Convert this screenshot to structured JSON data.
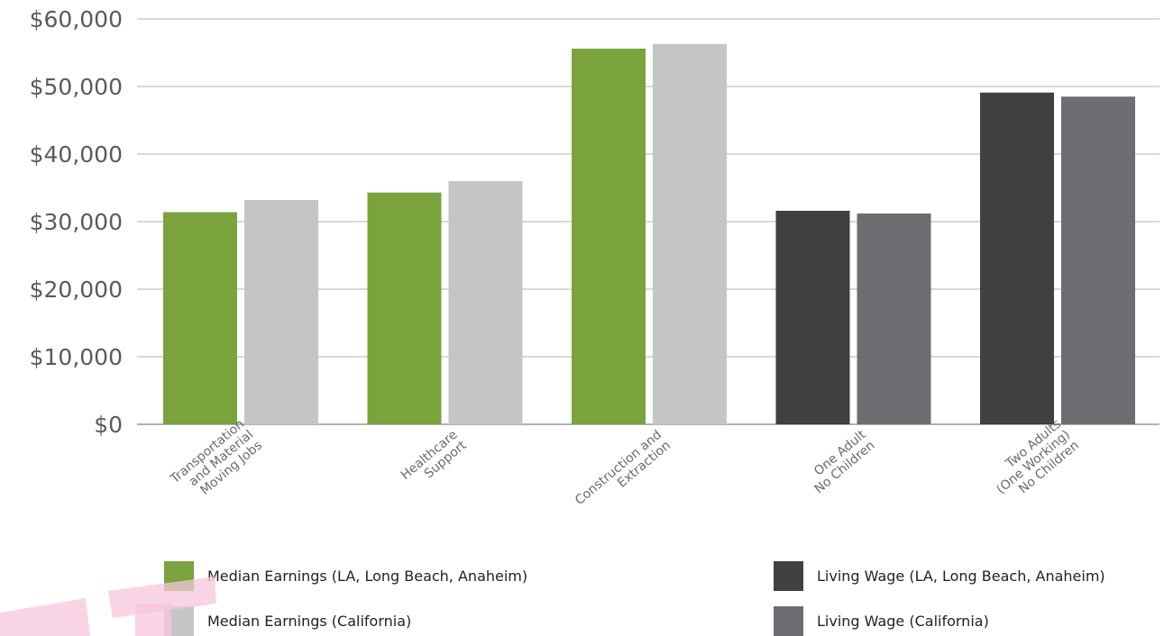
{
  "chart_data": {
    "type": "bar",
    "categories": [
      [
        "Transportation",
        "and Material",
        "Moving Jobs"
      ],
      [
        "Healthcare",
        "Support"
      ],
      [
        "Construction and",
        "Extraction"
      ],
      [
        "One Adult",
        "No Children"
      ],
      [
        "Two Adults",
        "(One Working)",
        "No Children"
      ]
    ],
    "series": [
      {
        "name": "Median Earnings (LA, Long Beach, Anaheim)",
        "color": "#7aa33e",
        "values": [
          31400,
          34300,
          55600,
          null,
          null
        ]
      },
      {
        "name": "Median Earnings (California)",
        "color": "#c4c5c7",
        "values": [
          33200,
          36000,
          56300,
          null,
          null
        ]
      },
      {
        "name": "Living Wage (LA, Long Beach, Anaheim)",
        "color": "#404042",
        "values": [
          null,
          null,
          null,
          31600,
          49100
        ]
      },
      {
        "name": "Living Wage (California)",
        "color": "#6d6e72",
        "values": [
          null,
          null,
          null,
          31200,
          48500
        ]
      }
    ],
    "ylim": [
      0,
      60000
    ],
    "yticks": [
      0,
      10000,
      20000,
      30000,
      40000,
      50000,
      60000
    ],
    "ytick_labels": [
      "$0",
      "$10,000",
      "$20,000",
      "$30,000",
      "$40,000",
      "$50,000",
      "$60,000"
    ],
    "grid": true,
    "legend": "bottom",
    "title": "",
    "xlabel": "",
    "ylabel": ""
  }
}
